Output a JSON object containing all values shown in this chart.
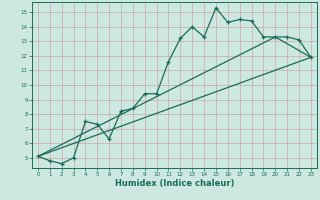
{
  "title": "",
  "xlabel": "Humidex (Indice chaleur)",
  "ylabel": "",
  "background_color": "#cce8e0",
  "grid_color": "#b0c8c0",
  "line_color": "#1a6b5a",
  "xlim": [
    -0.5,
    23.5
  ],
  "ylim": [
    4.3,
    15.7
  ],
  "yticks": [
    5,
    6,
    7,
    8,
    9,
    10,
    11,
    12,
    13,
    14,
    15
  ],
  "xticks": [
    0,
    1,
    2,
    3,
    4,
    5,
    6,
    7,
    8,
    9,
    10,
    11,
    12,
    13,
    14,
    15,
    16,
    17,
    18,
    19,
    20,
    21,
    22,
    23
  ],
  "main_line_x": [
    0,
    1,
    2,
    3,
    4,
    5,
    6,
    7,
    8,
    9,
    10,
    11,
    12,
    13,
    14,
    15,
    16,
    17,
    18,
    19,
    20,
    21,
    22,
    23
  ],
  "main_line_y": [
    5.1,
    4.8,
    4.6,
    5.0,
    7.5,
    7.3,
    6.3,
    8.2,
    8.4,
    9.4,
    9.4,
    11.6,
    13.2,
    14.0,
    13.3,
    15.3,
    14.3,
    14.5,
    14.4,
    13.3,
    13.3,
    13.3,
    13.1,
    11.9
  ],
  "line2_x": [
    0,
    23
  ],
  "line2_y": [
    5.1,
    11.9
  ],
  "line3_x": [
    0,
    20,
    23
  ],
  "line3_y": [
    5.1,
    13.3,
    11.9
  ]
}
